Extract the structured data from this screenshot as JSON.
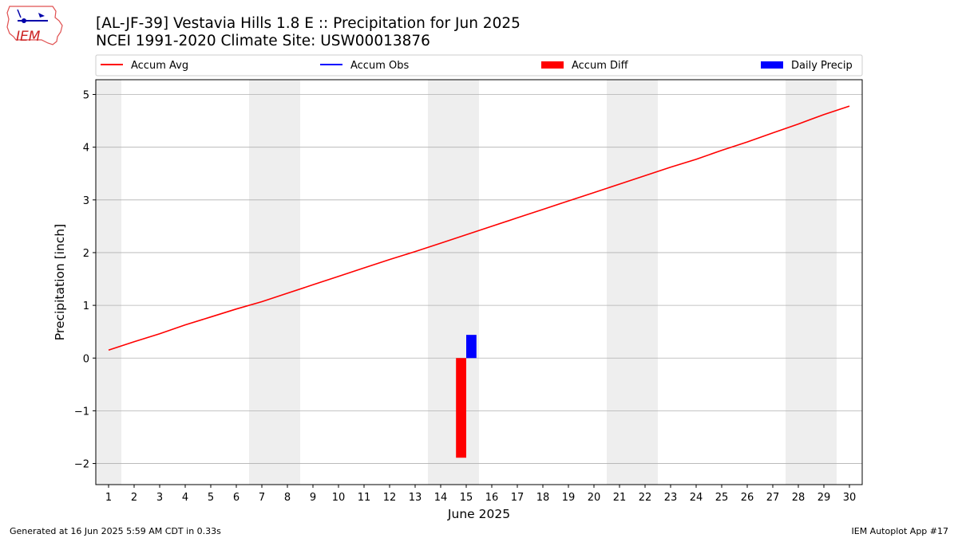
{
  "header": {
    "title_line1": "[AL-JF-39] Vestavia Hills 1.8 E :: Precipitation for Jun 2025",
    "title_line2": "NCEI 1991-2020 Climate Site: USW00013876",
    "logo_text": "IEM"
  },
  "footer": {
    "generated": "Generated at 16 Jun 2025 5:59 AM CDT in 0.33s",
    "app": "IEM Autoplot App #17"
  },
  "legend": {
    "placement": "top",
    "items": [
      {
        "label": "Accum Avg",
        "kind": "line",
        "color": "#ff0000"
      },
      {
        "label": "Accum Obs",
        "kind": "line",
        "color": "#0000ff"
      },
      {
        "label": "Accum Diff",
        "kind": "bar",
        "color": "#ff0000"
      },
      {
        "label": "Daily Precip",
        "kind": "bar",
        "color": "#0000ff"
      }
    ]
  },
  "chart_data": {
    "type": "line",
    "xlabel": "June 2025",
    "ylabel": "Precipitation [inch]",
    "xlim": [
      0.5,
      30.5
    ],
    "ylim": [
      -2.4,
      5.28
    ],
    "x_ticks": [
      1,
      2,
      3,
      4,
      5,
      6,
      7,
      8,
      9,
      10,
      11,
      12,
      13,
      14,
      15,
      16,
      17,
      18,
      19,
      20,
      21,
      22,
      23,
      24,
      25,
      26,
      27,
      28,
      29,
      30
    ],
    "y_ticks": [
      -2,
      -1,
      0,
      1,
      2,
      3,
      4,
      5
    ],
    "y_tick_labels": [
      "−2",
      "−1",
      "0",
      "1",
      "2",
      "3",
      "4",
      "5"
    ],
    "grid": "horizontal",
    "weekend_shading": [
      [
        0.5,
        1.5
      ],
      [
        6.5,
        8.5
      ],
      [
        13.5,
        15.5
      ],
      [
        20.5,
        22.5
      ],
      [
        27.5,
        29.5
      ]
    ],
    "shade_color": "#eeeeee",
    "series": [
      {
        "name": "Accum Avg",
        "type": "line",
        "color": "#ff0000",
        "x": [
          1,
          2,
          3,
          4,
          5,
          6,
          7,
          8,
          9,
          10,
          11,
          12,
          13,
          14,
          15,
          16,
          17,
          18,
          19,
          20,
          21,
          22,
          23,
          24,
          25,
          26,
          27,
          28,
          29,
          30
        ],
        "values": [
          0.15,
          0.31,
          0.46,
          0.63,
          0.78,
          0.93,
          1.07,
          1.23,
          1.39,
          1.55,
          1.71,
          1.87,
          2.02,
          2.18,
          2.34,
          2.5,
          2.66,
          2.82,
          2.98,
          3.14,
          3.3,
          3.46,
          3.62,
          3.77,
          3.94,
          4.1,
          4.27,
          4.44,
          4.62,
          4.78
        ]
      },
      {
        "name": "Accum Obs",
        "type": "line",
        "color": "#0000ff",
        "x": [],
        "values": []
      },
      {
        "name": "Accum Diff",
        "type": "bar",
        "color": "#ff0000",
        "x": [
          15
        ],
        "values": [
          -1.89
        ]
      },
      {
        "name": "Daily Precip",
        "type": "bar",
        "color": "#0000ff",
        "x": [
          15
        ],
        "values": [
          0.44
        ]
      }
    ]
  }
}
